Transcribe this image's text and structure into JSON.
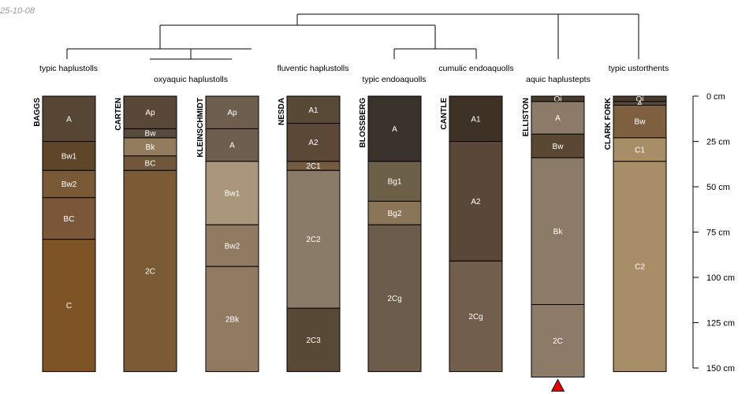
{
  "stamp": "25-10-08",
  "depth_axis": {
    "max_cm": 150,
    "ticks": [
      {
        "value": 0,
        "label": "0 cm"
      },
      {
        "value": 25,
        "label": "25 cm"
      },
      {
        "value": 50,
        "label": "50 cm"
      },
      {
        "value": 75,
        "label": "75 cm"
      },
      {
        "value": 100,
        "label": "100 cm"
      },
      {
        "value": 125,
        "label": "125 cm"
      },
      {
        "value": 150,
        "label": "150 cm"
      }
    ]
  },
  "groups": [
    {
      "label": "typic haplustolls"
    },
    {
      "label": "oxyaquic haplustolls"
    },
    {
      "label": "fluventic haplustolls"
    },
    {
      "label": "typic endoaquolls"
    },
    {
      "label": "cumulic endoaquolls"
    },
    {
      "label": "aquic haplustepts"
    },
    {
      "label": "typic ustorthents"
    }
  ],
  "profiles": [
    {
      "name": "BAGGS",
      "horizons": [
        {
          "name": "A",
          "top": 0,
          "bottom": 25,
          "color": "#584635"
        },
        {
          "name": "Bw1",
          "top": 25,
          "bottom": 41,
          "color": "#5f4628"
        },
        {
          "name": "Bw2",
          "top": 41,
          "bottom": 56,
          "color": "#7a5a36"
        },
        {
          "name": "BC",
          "top": 56,
          "bottom": 79,
          "color": "#7b5638"
        },
        {
          "name": "C",
          "top": 79,
          "bottom": 152,
          "color": "#7e5325"
        }
      ]
    },
    {
      "name": "CARTEN",
      "horizons": [
        {
          "name": "Ap",
          "top": 0,
          "bottom": 18,
          "color": "#594838"
        },
        {
          "name": "Bw",
          "top": 18,
          "bottom": 23,
          "color": "#584a3c"
        },
        {
          "name": "Bk",
          "top": 23,
          "bottom": 33,
          "color": "#937b5e"
        },
        {
          "name": "BC",
          "top": 33,
          "bottom": 41,
          "color": "#70563a"
        },
        {
          "name": "2C",
          "top": 41,
          "bottom": 152,
          "color": "#7b5b36"
        }
      ]
    },
    {
      "name": "KLEINSCHMIDT",
      "horizons": [
        {
          "name": "Ap",
          "top": 0,
          "bottom": 18,
          "color": "#6e5e4e"
        },
        {
          "name": "A",
          "top": 18,
          "bottom": 36,
          "color": "#6e5e4e"
        },
        {
          "name": "Bw1",
          "top": 36,
          "bottom": 71,
          "color": "#a9967b"
        },
        {
          "name": "Bw2",
          "top": 71,
          "bottom": 94,
          "color": "#907b62"
        },
        {
          "name": "2Bk",
          "top": 94,
          "bottom": 152,
          "color": "#907b62"
        }
      ]
    },
    {
      "name": "NESDA",
      "horizons": [
        {
          "name": "A1",
          "top": 0,
          "bottom": 15,
          "color": "#584836"
        },
        {
          "name": "A2",
          "top": 15,
          "bottom": 36,
          "color": "#5c4836"
        },
        {
          "name": "2C1",
          "top": 36,
          "bottom": 41,
          "color": "#745a3e"
        },
        {
          "name": "2C2",
          "top": 41,
          "bottom": 117,
          "color": "#8a7a68"
        },
        {
          "name": "2C3",
          "top": 117,
          "bottom": 152,
          "color": "#584836"
        }
      ]
    },
    {
      "name": "BLOSSBERG",
      "horizons": [
        {
          "name": "A",
          "top": 0,
          "bottom": 36,
          "color": "#3a332c"
        },
        {
          "name": "Bg1",
          "top": 36,
          "bottom": 58,
          "color": "#6c6049"
        },
        {
          "name": "Bg2",
          "top": 58,
          "bottom": 71,
          "color": "#8a7558"
        },
        {
          "name": "2Cg",
          "top": 71,
          "bottom": 152,
          "color": "#6c5c4b"
        }
      ]
    },
    {
      "name": "CANTLE",
      "horizons": [
        {
          "name": "A1",
          "top": 0,
          "bottom": 25,
          "color": "#3e3126"
        },
        {
          "name": "A2",
          "top": 25,
          "bottom": 91,
          "color": "#594838"
        },
        {
          "name": "2Cg",
          "top": 91,
          "bottom": 152,
          "color": "#715e4d"
        }
      ]
    },
    {
      "name": "ELLISTON",
      "bottom_marker": true,
      "horizons": [
        {
          "name": "Oi",
          "top": 0,
          "bottom": 3,
          "color": "#4a3a2c"
        },
        {
          "name": "A",
          "top": 3,
          "bottom": 21,
          "color": "#8c7b68"
        },
        {
          "name": "Bw",
          "top": 21,
          "bottom": 34,
          "color": "#5b4834"
        },
        {
          "name": "Bk",
          "top": 34,
          "bottom": 115,
          "color": "#8c7b68"
        },
        {
          "name": "2C",
          "top": 115,
          "bottom": 155,
          "color": "#8c7b68"
        }
      ]
    },
    {
      "name": "CLARK FORK",
      "horizons": [
        {
          "name": "Oi",
          "top": 0,
          "bottom": 3,
          "color": "#4a3a2c"
        },
        {
          "name": "A",
          "top": 3,
          "bottom": 5,
          "color": "#584836"
        },
        {
          "name": "Bw",
          "top": 5,
          "bottom": 23,
          "color": "#7e6041"
        },
        {
          "name": "C1",
          "top": 23,
          "bottom": 36,
          "color": "#a88d69"
        },
        {
          "name": "C2",
          "top": 36,
          "bottom": 152,
          "color": "#a88d69"
        }
      ]
    }
  ]
}
